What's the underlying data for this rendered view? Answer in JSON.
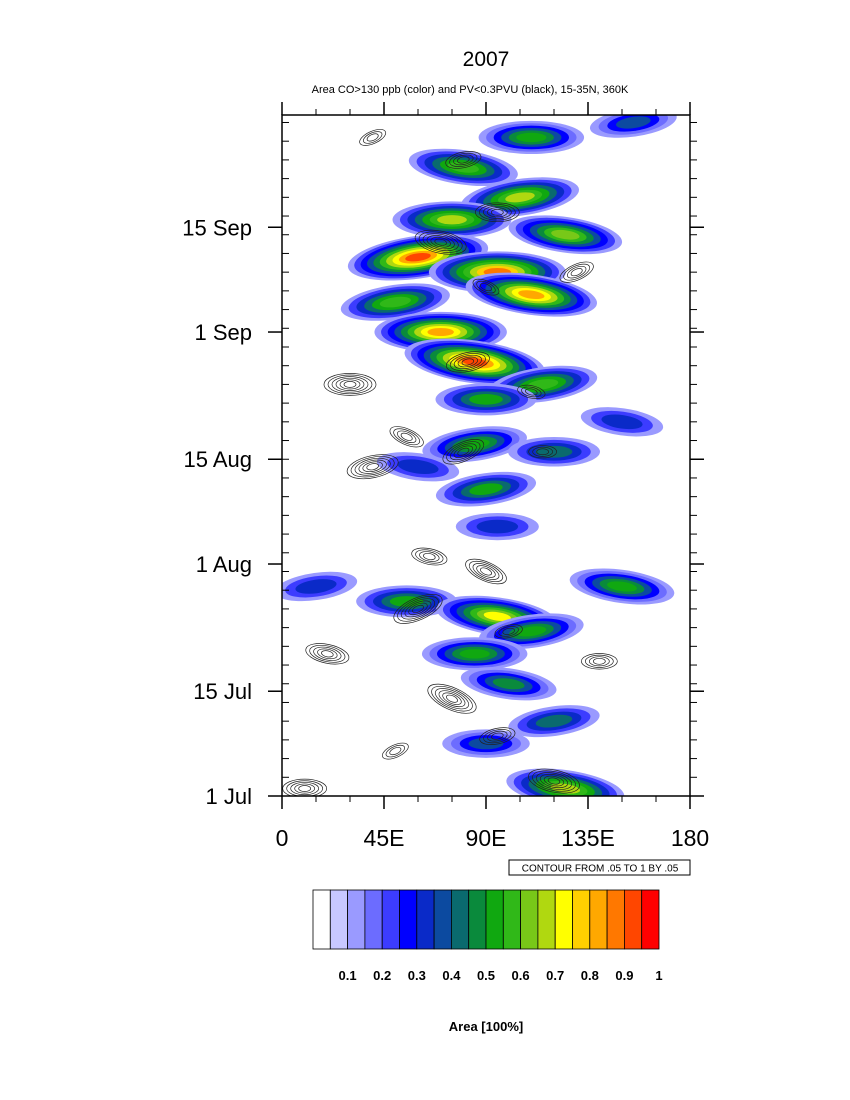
{
  "chart_data": {
    "type": "heatmap",
    "title": "2007",
    "subtitle": "Area CO>130 ppb (color) and PV<0.3PVU (black), 15-35N, 360K",
    "x_ticks": [
      "0",
      "45E",
      "90E",
      "135E",
      "180"
    ],
    "x_tick_values": [
      0,
      45,
      90,
      135,
      180
    ],
    "xlim": [
      0,
      180
    ],
    "y_ticks": [
      "1 Jul",
      "15 Jul",
      "1 Aug",
      "15 Aug",
      "1 Sep",
      "15 Sep"
    ],
    "y_tick_values": [
      0,
      14,
      31,
      45,
      62,
      76
    ],
    "ylim": [
      0,
      91
    ],
    "contour_info": "CONTOUR FROM .05 TO 1 BY .05",
    "colorbar": {
      "labels": [
        "0.1",
        "0.2",
        "0.3",
        "0.4",
        "0.5",
        "0.6",
        "0.7",
        "0.8",
        "0.9",
        "1"
      ],
      "label_values": [
        0.1,
        0.2,
        0.3,
        0.4,
        0.5,
        0.6,
        0.7,
        0.8,
        0.9,
        1.0
      ],
      "title": "Area [100%]",
      "colors": [
        "#ffffff",
        "#c8c8ff",
        "#9a9aff",
        "#6c6cff",
        "#3c3cff",
        "#0000ff",
        "#0a2ac8",
        "#0c4aa0",
        "#0a6a6e",
        "#0a8a3c",
        "#10a810",
        "#30b818",
        "#78c818",
        "#b0d810",
        "#ffff00",
        "#ffd000",
        "#ffa800",
        "#ff7800",
        "#ff4600",
        "#ff0000"
      ]
    },
    "co_area_features": [
      {
        "lon": 155,
        "day": 90,
        "area": 0.35
      },
      {
        "lon": 110,
        "day": 88,
        "area": 0.55
      },
      {
        "lon": 80,
        "day": 84,
        "area": 0.6
      },
      {
        "lon": 105,
        "day": 80,
        "area": 0.7
      },
      {
        "lon": 75,
        "day": 77,
        "area": 0.7
      },
      {
        "lon": 125,
        "day": 75,
        "area": 0.65
      },
      {
        "lon": 60,
        "day": 72,
        "area": 0.95
      },
      {
        "lon": 95,
        "day": 70,
        "area": 0.9
      },
      {
        "lon": 110,
        "day": 67,
        "area": 0.85
      },
      {
        "lon": 50,
        "day": 66,
        "area": 0.6
      },
      {
        "lon": 70,
        "day": 62,
        "area": 0.85
      },
      {
        "lon": 85,
        "day": 58,
        "area": 0.95
      },
      {
        "lon": 115,
        "day": 55,
        "area": 0.6
      },
      {
        "lon": 90,
        "day": 53,
        "area": 0.5
      },
      {
        "lon": 150,
        "day": 50,
        "area": 0.3
      },
      {
        "lon": 85,
        "day": 47,
        "area": 0.55
      },
      {
        "lon": 120,
        "day": 46,
        "area": 0.4
      },
      {
        "lon": 60,
        "day": 44,
        "area": 0.3
      },
      {
        "lon": 90,
        "day": 41,
        "area": 0.5
      },
      {
        "lon": 95,
        "day": 36,
        "area": 0.3
      },
      {
        "lon": 150,
        "day": 28,
        "area": 0.55
      },
      {
        "lon": 15,
        "day": 28,
        "area": 0.3
      },
      {
        "lon": 55,
        "day": 26,
        "area": 0.5
      },
      {
        "lon": 95,
        "day": 24,
        "area": 0.75
      },
      {
        "lon": 110,
        "day": 22,
        "area": 0.55
      },
      {
        "lon": 85,
        "day": 19,
        "area": 0.55
      },
      {
        "lon": 100,
        "day": 15,
        "area": 0.45
      },
      {
        "lon": 120,
        "day": 10,
        "area": 0.4
      },
      {
        "lon": 90,
        "day": 7,
        "area": 0.35
      },
      {
        "lon": 125,
        "day": 1,
        "area": 0.7
      }
    ],
    "pv_area_features": [
      {
        "lon": 40,
        "day": 88
      },
      {
        "lon": 80,
        "day": 85
      },
      {
        "lon": 95,
        "day": 78
      },
      {
        "lon": 70,
        "day": 74
      },
      {
        "lon": 90,
        "day": 68
      },
      {
        "lon": 130,
        "day": 70
      },
      {
        "lon": 82,
        "day": 58
      },
      {
        "lon": 30,
        "day": 55
      },
      {
        "lon": 110,
        "day": 54
      },
      {
        "lon": 55,
        "day": 48
      },
      {
        "lon": 80,
        "day": 46
      },
      {
        "lon": 40,
        "day": 44
      },
      {
        "lon": 115,
        "day": 46
      },
      {
        "lon": 65,
        "day": 32
      },
      {
        "lon": 90,
        "day": 30
      },
      {
        "lon": 60,
        "day": 25
      },
      {
        "lon": 100,
        "day": 22
      },
      {
        "lon": 140,
        "day": 18
      },
      {
        "lon": 20,
        "day": 19
      },
      {
        "lon": 75,
        "day": 13
      },
      {
        "lon": 50,
        "day": 6
      },
      {
        "lon": 95,
        "day": 8
      },
      {
        "lon": 10,
        "day": 1
      },
      {
        "lon": 120,
        "day": 2
      }
    ]
  }
}
